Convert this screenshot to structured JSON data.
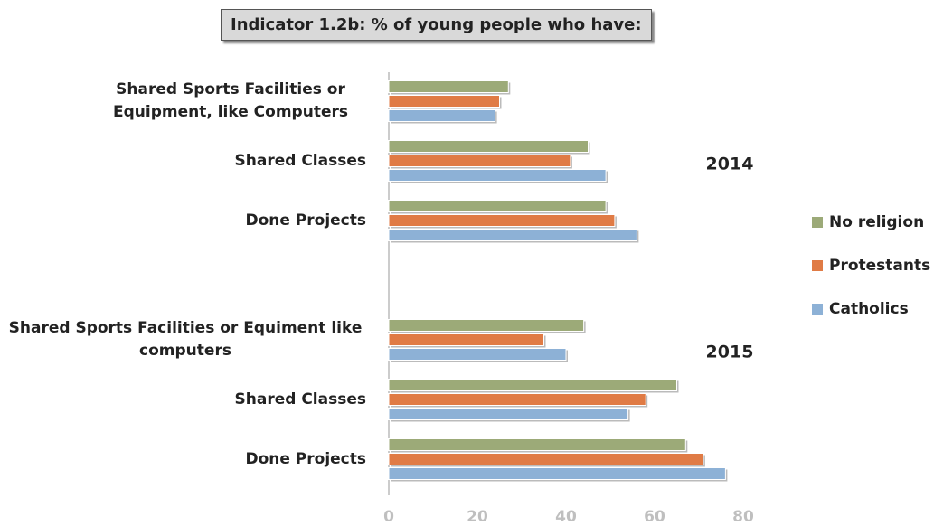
{
  "chart_data": {
    "type": "hbar",
    "title": "Indicator 1.2b: % of young people who have:",
    "annotations": [
      "2014",
      "2015"
    ],
    "categories": [
      "Shared Sports Facilities or Equipment, like Computers",
      "Shared Classes",
      "Done Projects",
      null,
      "Shared Sports Facilities or Equiment like computers",
      "Shared Classes",
      "Done Projects"
    ],
    "series": [
      {
        "name": "No religion",
        "color": "#9caa78",
        "values": [
          27,
          45,
          49,
          null,
          44,
          65,
          67
        ]
      },
      {
        "name": "Protestants",
        "color": "#e07b45",
        "values": [
          25,
          41,
          51,
          null,
          35,
          58,
          71
        ]
      },
      {
        "name": "Catholics",
        "color": "#8db1d6",
        "values": [
          24,
          49,
          56,
          null,
          40,
          54,
          76
        ]
      }
    ],
    "xlim": [
      0,
      80
    ],
    "xticks": [
      0,
      20,
      40,
      60,
      80
    ],
    "grid": false,
    "legend": "right"
  }
}
